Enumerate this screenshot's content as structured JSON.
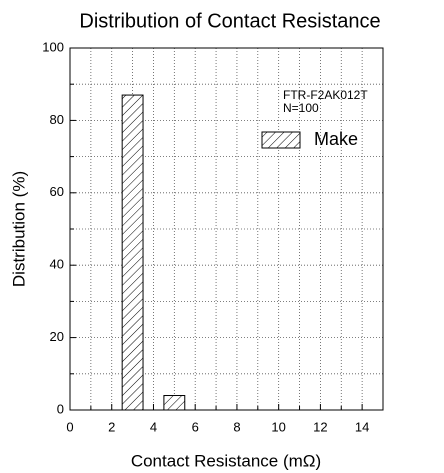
{
  "chart_data": {
    "type": "histogram",
    "title": "Distribution of Contact Resistance",
    "xlabel": "Contact Resistance (mΩ)",
    "ylabel": "Distribution (%)",
    "bins": [
      2.5,
      3.5,
      4.5,
      5.5
    ],
    "series": [
      {
        "name": "Make",
        "color": "#000000",
        "values": [
          87,
          0,
          4
        ]
      }
    ],
    "annotations": [
      "FTR-F2AK012T",
      "N=100"
    ],
    "xlim": [
      0,
      15
    ],
    "xticks": [
      0,
      2,
      4,
      6,
      8,
      10,
      12,
      14
    ],
    "ylim": [
      0,
      100
    ],
    "yticks": [
      0,
      20,
      40,
      60,
      80,
      100
    ],
    "minor_yticks": [
      10,
      30,
      50,
      70,
      90
    ],
    "minor_xticks": [
      1,
      3,
      5,
      7,
      9,
      11,
      13,
      15
    ],
    "grid": true,
    "legend": "upper right"
  }
}
